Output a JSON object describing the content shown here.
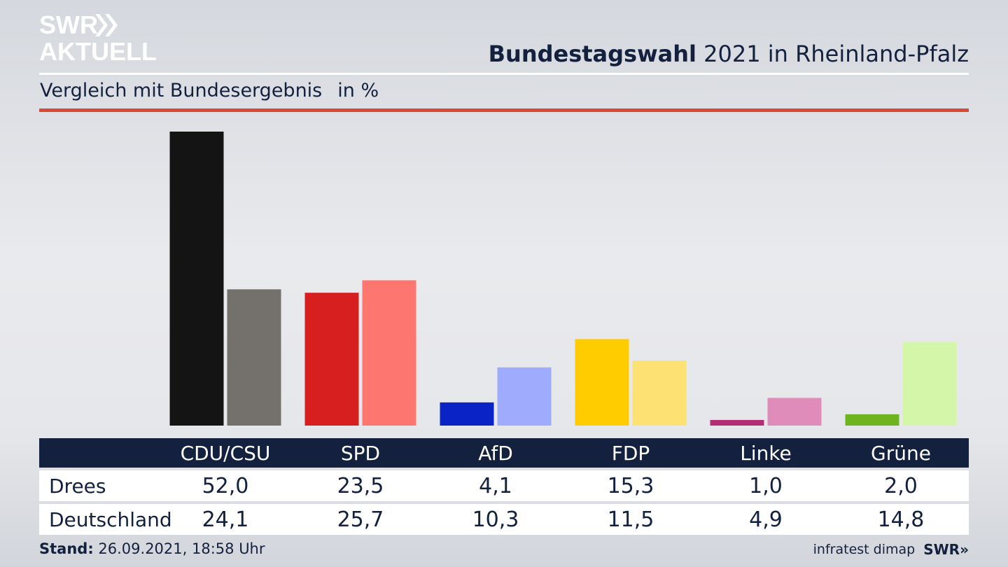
{
  "brand": {
    "logo_line1": "SWR",
    "logo_line2": "AKTUELL",
    "logo_color": "#ffffff"
  },
  "header": {
    "title_bold": "Bundestagswahl",
    "title_rest": "2021 in Rheinland-Pfalz",
    "subtitle": "Vergleich mit Bundesergebnis",
    "unit": "in %"
  },
  "chart_data": {
    "type": "bar",
    "categories": [
      "CDU/CSU",
      "SPD",
      "AfD",
      "FDP",
      "Linke",
      "Grüne"
    ],
    "series": [
      {
        "name": "Drees",
        "values": [
          52.0,
          23.5,
          4.1,
          15.3,
          1.0,
          2.0
        ],
        "colors": [
          "#141414",
          "#d71f1f",
          "#0a23c6",
          "#ffcc00",
          "#b32d73",
          "#6db41f"
        ]
      },
      {
        "name": "Deutschland",
        "values": [
          24.1,
          25.7,
          10.3,
          11.5,
          4.9,
          14.8
        ],
        "colors": [
          "#74716d",
          "#fd7670",
          "#9fabfc",
          "#fde173",
          "#df8cba",
          "#d4f6a8"
        ]
      }
    ],
    "ylim": [
      0,
      52
    ],
    "grid": false,
    "legend": "table-below"
  },
  "table": {
    "headers": [
      "CDU/CSU",
      "SPD",
      "AfD",
      "FDP",
      "Linke",
      "Grüne"
    ],
    "rows": [
      {
        "label": "Drees",
        "cells": [
          "52,0",
          "23,5",
          "4,1",
          "15,3",
          "1,0",
          "2,0"
        ]
      },
      {
        "label": "Deutschland",
        "cells": [
          "24,1",
          "25,7",
          "10,3",
          "11,5",
          "4,9",
          "14,8"
        ]
      }
    ]
  },
  "footer": {
    "stand_label": "Stand:",
    "stand_value": "26.09.2021, 18:58 Uhr",
    "source": "infratest dimap",
    "source_brand": "SWR"
  },
  "colors": {
    "navy": "#13213f",
    "accent_red": "#d94a36"
  }
}
